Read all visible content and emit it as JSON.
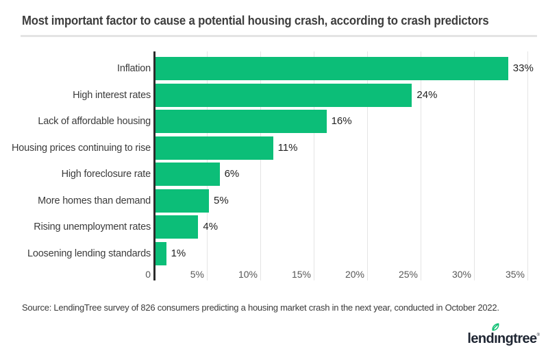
{
  "title": "Most important factor to cause a potential housing crash, according to crash predictors",
  "source": "Source: LendingTree survey of 826 consumers predicting a housing market crash in the next year, conducted in October 2022.",
  "logo": {
    "brand_prefix": "lend",
    "brand_i": "ı",
    "brand_suffix": "ngtree",
    "registered_mark": "®",
    "leaf_icon": "leaf-icon"
  },
  "colors": {
    "bar": "#0cbe78",
    "axis": "#2b2b2b",
    "gridline": "#e4e4e4",
    "divider": "#e3e3e3",
    "title_text": "#3d3d3d",
    "category_text": "#3b3b3b",
    "value_text": "#222222",
    "tick_text": "#575757",
    "source_text": "#3a3a3a",
    "logo_text": "#1f2633",
    "leaf_green": "#0abf71"
  },
  "chart_data": {
    "type": "bar",
    "orientation": "horizontal",
    "title": "Most important factor to cause a potential housing crash, according to crash predictors",
    "categories": [
      "Inflation",
      "High interest rates",
      "Lack of affordable housing",
      "Housing prices continuing to rise",
      "High foreclosure rate",
      "More homes than demand",
      "Rising unemployment rates",
      "Loosening lending standards"
    ],
    "values": [
      33,
      24,
      16,
      11,
      6,
      5,
      4,
      1
    ],
    "value_labels": [
      "33%",
      "24%",
      "16%",
      "11%",
      "6%",
      "5%",
      "4%",
      "1%"
    ],
    "xlabel": "",
    "ylabel": "",
    "xlim": [
      0,
      35
    ],
    "xtick_values": [
      0,
      5,
      10,
      15,
      20,
      25,
      30,
      35
    ],
    "xtick_labels": [
      "0",
      "5%",
      "10%",
      "15%",
      "20%",
      "25%",
      "30%",
      "35%"
    ],
    "grid": true,
    "legend": false,
    "bar_color": "#0cbe78"
  }
}
